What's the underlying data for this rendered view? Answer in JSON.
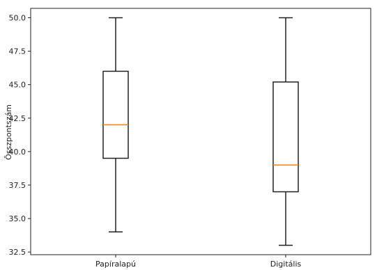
{
  "chart_data": {
    "type": "boxplot",
    "title": "",
    "xlabel": "",
    "ylabel": "Összpontszám",
    "ylim": [
      32.3,
      50.7
    ],
    "yticks": [
      32.5,
      35.0,
      37.5,
      40.0,
      42.5,
      45.0,
      47.5,
      50.0
    ],
    "ytick_labels": [
      "32.5",
      "35.0",
      "37.5",
      "40.0",
      "42.5",
      "45.0",
      "47.5",
      "50.0"
    ],
    "categories": [
      "Papíralapú",
      "Digitális"
    ],
    "boxes": [
      {
        "category": "Papíralapú",
        "whisker_low": 34.0,
        "q1": 39.5,
        "median": 42.0,
        "q3": 46.0,
        "whisker_high": 50.0
      },
      {
        "category": "Digitális",
        "whisker_low": 33.0,
        "q1": 37.0,
        "median": 39.0,
        "q3": 45.2,
        "whisker_high": 50.0
      }
    ],
    "grid": false,
    "colors": {
      "box": "#222222",
      "median": "#ff7f0e",
      "axes": "#222222"
    }
  }
}
